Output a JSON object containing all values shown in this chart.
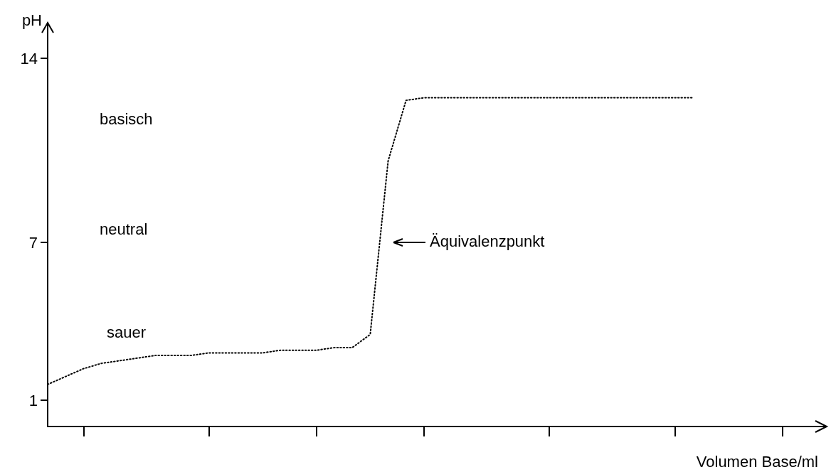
{
  "chart_data": {
    "type": "line",
    "ylabel": "pH",
    "xlabel": "Volumen Base/ml",
    "categories": [
      null,
      null,
      null,
      null,
      null,
      null,
      null,
      null,
      null,
      null,
      null,
      null,
      null,
      null,
      null,
      null,
      null,
      null,
      null,
      null,
      null,
      null,
      null,
      null,
      null,
      null,
      null,
      null,
      null,
      null,
      null,
      null,
      null,
      null,
      null,
      null,
      null,
      null,
      null,
      null,
      null,
      null,
      null,
      null
    ],
    "series": [
      {
        "color": "#000000",
        "values": [
          1.6,
          1.9,
          2.2,
          2.4,
          2.5,
          2.6,
          2.7,
          2.7,
          2.7,
          2.8,
          2.8,
          2.8,
          2.8,
          2.9,
          2.9,
          2.9,
          3.0,
          3.0,
          3.5,
          10.1,
          12.4,
          12.5,
          12.5,
          12.5,
          12.5,
          12.5,
          12.5,
          12.5,
          12.5,
          12.5,
          12.5,
          12.5,
          12.5,
          12.5,
          12.5,
          12.5,
          12.5,
          null,
          null,
          null,
          null,
          null,
          null,
          null
        ]
      }
    ],
    "ylim": [
      0,
      15
    ],
    "yticks": [
      1,
      7,
      14
    ],
    "grid": false,
    "marker": "none",
    "line_style": "dotted",
    "annotations": [
      "basisch",
      "neutral",
      "sauer",
      "Äquivalenzpunkt"
    ]
  }
}
